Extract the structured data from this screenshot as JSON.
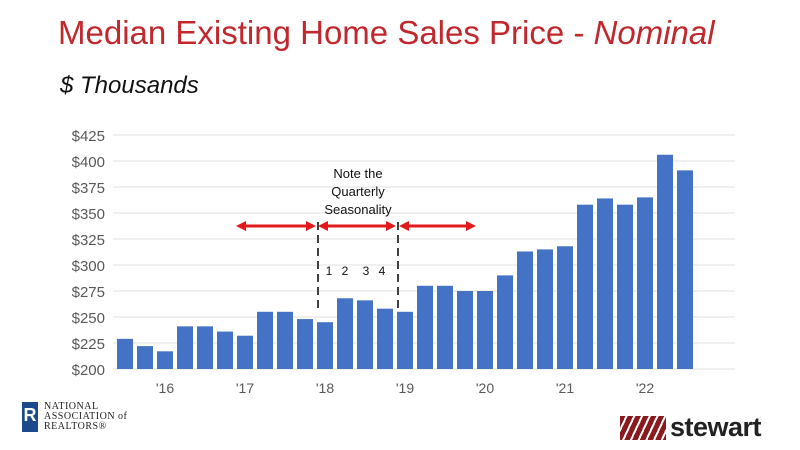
{
  "title": {
    "main": "Median Existing Home Sales Price - ",
    "emphasis": "Nominal"
  },
  "subtitle": "$ Thousands",
  "chart_data": {
    "type": "bar",
    "title": "Median Existing Home Sales Price - Nominal",
    "ylabel": "$ Thousands",
    "ylim": [
      200,
      425
    ],
    "yticks": [
      200,
      225,
      250,
      275,
      300,
      325,
      350,
      375,
      400,
      425
    ],
    "ytick_labels": [
      "$200",
      "$225",
      "$250",
      "$275",
      "$300",
      "$325",
      "$350",
      "$375",
      "$400",
      "$425"
    ],
    "grid": true,
    "bar_color": "#4472c4",
    "categories": [
      "2015Q3",
      "2015Q4",
      "2016Q1",
      "2016Q2",
      "2016Q3",
      "2016Q4",
      "2017Q1",
      "2017Q2",
      "2017Q3",
      "2017Q4",
      "2018Q1",
      "2018Q2",
      "2018Q3",
      "2018Q4",
      "2019Q1",
      "2019Q2",
      "2019Q3",
      "2019Q4",
      "2020Q1",
      "2020Q2",
      "2020Q3",
      "2020Q4",
      "2021Q1",
      "2021Q2",
      "2021Q3",
      "2021Q4",
      "2022Q1",
      "2022Q2",
      "2022Q3"
    ],
    "values": [
      229,
      222,
      217,
      241,
      241,
      236,
      232,
      255,
      255,
      248,
      245,
      268,
      266,
      258,
      255,
      280,
      280,
      275,
      275,
      290,
      313,
      315,
      318,
      358,
      364,
      358,
      365,
      406,
      391
    ],
    "xtick_labels": [
      {
        "index": 2,
        "label": "'16"
      },
      {
        "index": 6,
        "label": "'17"
      },
      {
        "index": 10,
        "label": "'18"
      },
      {
        "index": 14,
        "label": "'19"
      },
      {
        "index": 18,
        "label": "'20"
      },
      {
        "index": 22,
        "label": "'21"
      },
      {
        "index": 26,
        "label": "'22"
      }
    ],
    "annotations": {
      "note": [
        "Note the",
        "Quarterly",
        "Seasonality"
      ],
      "quarters": [
        "1",
        "2",
        "3",
        "4"
      ],
      "arrow_color": "#e31a1c"
    }
  },
  "logos": {
    "nar": [
      "NATIONAL",
      "ASSOCIATION of",
      "REALTORS®"
    ],
    "stewart": "stewart"
  }
}
